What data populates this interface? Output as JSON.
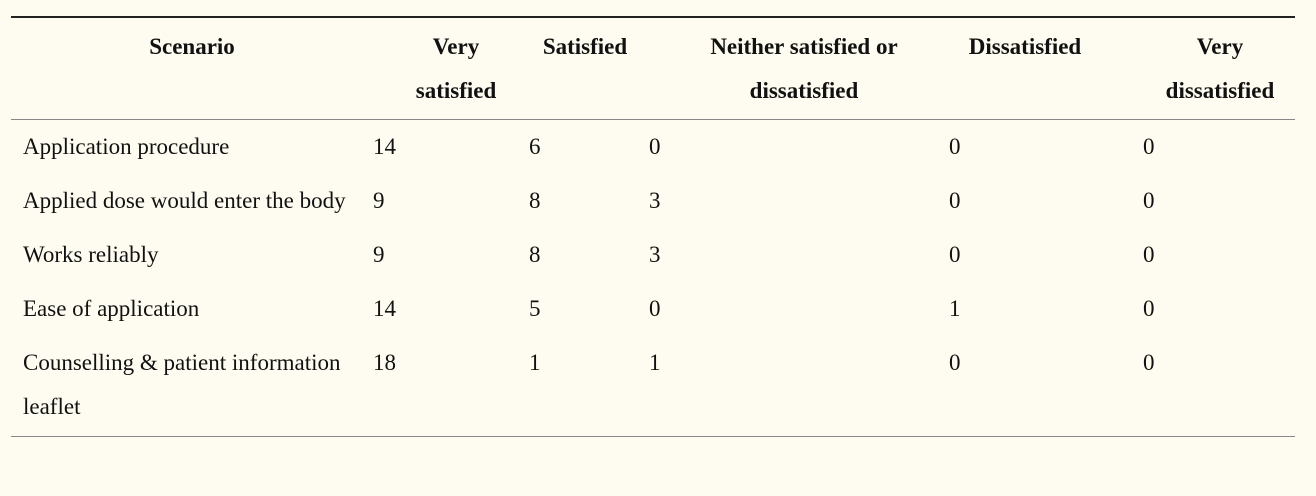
{
  "table": {
    "headers": [
      "Scenario",
      "Very satisfied",
      "Satisfied",
      "Neither satisfied or dissatisfied",
      "Dissatisfied",
      "Very dissatisfied"
    ],
    "rows": [
      [
        "Application procedure",
        "14",
        "6",
        "0",
        "0",
        "0"
      ],
      [
        "Applied dose would enter the body",
        "9",
        "8",
        "3",
        "0",
        "0"
      ],
      [
        "Works reliably",
        "9",
        "8",
        "3",
        "0",
        "0"
      ],
      [
        "Ease of application",
        "14",
        "5",
        "0",
        "1",
        "0"
      ],
      [
        "Counselling & patient information leaflet",
        "18",
        "1",
        "1",
        "0",
        "0"
      ]
    ]
  }
}
